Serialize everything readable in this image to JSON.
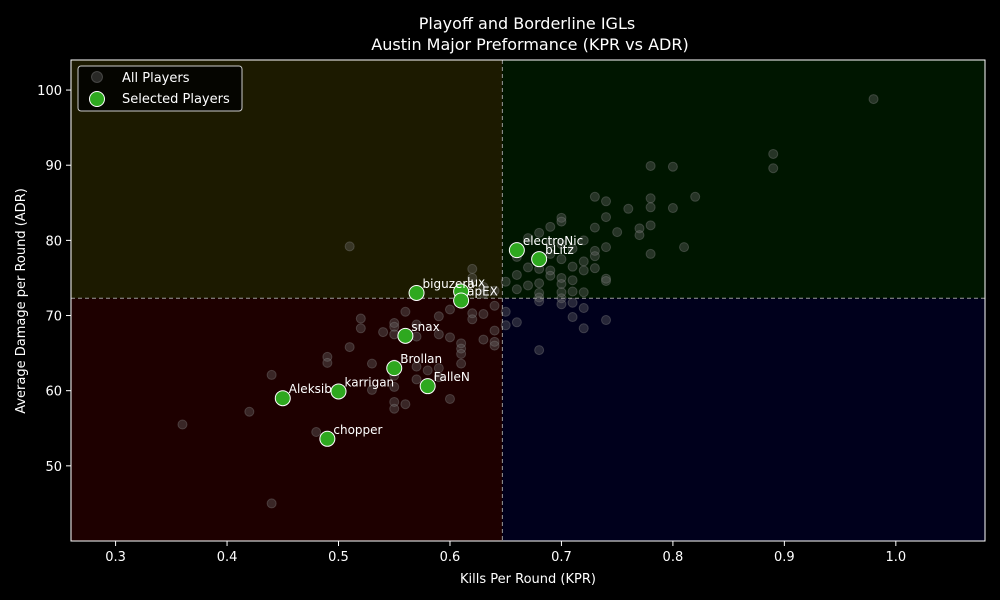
{
  "chart_data": {
    "type": "scatter",
    "title": "Playoff and Borderline IGLs",
    "subtitle": "Austin Major Preformance (KPR vs ADR)",
    "xlabel": "Kills Per Round (KPR)",
    "ylabel": "Average Damage per Round (ADR)",
    "xlim": [
      0.26,
      1.08
    ],
    "ylim": [
      40,
      104
    ],
    "xticks": [
      "0.3",
      "0.4",
      "0.5",
      "0.6",
      "0.7",
      "0.8",
      "0.9",
      "1.0"
    ],
    "yticks": [
      "50",
      "60",
      "70",
      "80",
      "90",
      "100"
    ],
    "grid": false,
    "legend_position": "top-left",
    "reference_lines": {
      "x": 0.647,
      "y": 72.3
    },
    "quadrant_colors": {
      "top_left": "#1c1a00",
      "top_right": "#001600",
      "bottom_left": "#1e0000",
      "bottom_right": "#00001c"
    },
    "colors": {
      "all_players": "#6e6e6e",
      "selected_players": "#2ea81f",
      "selected_edge": "#ffffff"
    },
    "legend": [
      "All Players",
      "Selected Players"
    ],
    "series": [
      {
        "name": "All Players",
        "points": [
          [
            0.98,
            98.8
          ],
          [
            0.89,
            91.5
          ],
          [
            0.89,
            89.6
          ],
          [
            0.82,
            85.8
          ],
          [
            0.8,
            89.8
          ],
          [
            0.78,
            89.9
          ],
          [
            0.78,
            85.6
          ],
          [
            0.78,
            84.4
          ],
          [
            0.76,
            84.2
          ],
          [
            0.74,
            85.2
          ],
          [
            0.73,
            85.8
          ],
          [
            0.74,
            83.1
          ],
          [
            0.8,
            84.3
          ],
          [
            0.78,
            82.0
          ],
          [
            0.77,
            81.6
          ],
          [
            0.77,
            80.7
          ],
          [
            0.75,
            81.1
          ],
          [
            0.73,
            81.7
          ],
          [
            0.7,
            83.0
          ],
          [
            0.69,
            81.8
          ],
          [
            0.7,
            82.5
          ],
          [
            0.68,
            81.0
          ],
          [
            0.67,
            80.3
          ],
          [
            0.69,
            79.6
          ],
          [
            0.72,
            80.0
          ],
          [
            0.7,
            79.5
          ],
          [
            0.74,
            79.1
          ],
          [
            0.73,
            78.6
          ],
          [
            0.73,
            77.9
          ],
          [
            0.71,
            78.9
          ],
          [
            0.81,
            79.1
          ],
          [
            0.78,
            78.2
          ],
          [
            0.69,
            78.2
          ],
          [
            0.7,
            77.5
          ],
          [
            0.72,
            77.2
          ],
          [
            0.66,
            77.8
          ],
          [
            0.67,
            76.4
          ],
          [
            0.68,
            76.2
          ],
          [
            0.69,
            76.0
          ],
          [
            0.71,
            76.5
          ],
          [
            0.72,
            76.0
          ],
          [
            0.73,
            76.3
          ],
          [
            0.66,
            75.4
          ],
          [
            0.69,
            75.3
          ],
          [
            0.7,
            75.0
          ],
          [
            0.71,
            74.7
          ],
          [
            0.74,
            74.9
          ],
          [
            0.74,
            74.6
          ],
          [
            0.65,
            74.5
          ],
          [
            0.67,
            74.0
          ],
          [
            0.68,
            74.3
          ],
          [
            0.7,
            74.2
          ],
          [
            0.62,
            76.2
          ],
          [
            0.62,
            75.0
          ],
          [
            0.63,
            73.8
          ],
          [
            0.64,
            73.3
          ],
          [
            0.66,
            73.5
          ],
          [
            0.68,
            73.0
          ],
          [
            0.7,
            73.1
          ],
          [
            0.71,
            73.2
          ],
          [
            0.72,
            73.1
          ],
          [
            0.63,
            72.9
          ],
          [
            0.68,
            72.4
          ],
          [
            0.7,
            72.3
          ],
          [
            0.68,
            71.9
          ],
          [
            0.7,
            71.5
          ],
          [
            0.71,
            71.7
          ],
          [
            0.72,
            71.0
          ],
          [
            0.64,
            71.3
          ],
          [
            0.65,
            70.5
          ],
          [
            0.71,
            69.8
          ],
          [
            0.74,
            69.4
          ],
          [
            0.66,
            69.1
          ],
          [
            0.72,
            68.3
          ],
          [
            0.65,
            68.7
          ],
          [
            0.64,
            68.0
          ],
          [
            0.63,
            70.2
          ],
          [
            0.62,
            70.3
          ],
          [
            0.62,
            69.5
          ],
          [
            0.6,
            70.8
          ],
          [
            0.59,
            69.9
          ],
          [
            0.56,
            70.5
          ],
          [
            0.52,
            69.6
          ],
          [
            0.51,
            79.2
          ],
          [
            0.55,
            69.0
          ],
          [
            0.55,
            68.5
          ],
          [
            0.57,
            68.8
          ],
          [
            0.52,
            68.3
          ],
          [
            0.54,
            67.8
          ],
          [
            0.55,
            67.5
          ],
          [
            0.57,
            67.2
          ],
          [
            0.59,
            67.5
          ],
          [
            0.6,
            67.1
          ],
          [
            0.61,
            66.3
          ],
          [
            0.63,
            66.8
          ],
          [
            0.64,
            66.5
          ],
          [
            0.64,
            66.0
          ],
          [
            0.61,
            65.6
          ],
          [
            0.61,
            64.9
          ],
          [
            0.68,
            65.4
          ],
          [
            0.51,
            65.8
          ],
          [
            0.49,
            64.5
          ],
          [
            0.49,
            63.7
          ],
          [
            0.53,
            63.6
          ],
          [
            0.55,
            63.5
          ],
          [
            0.57,
            63.2
          ],
          [
            0.59,
            63.0
          ],
          [
            0.61,
            63.6
          ],
          [
            0.58,
            62.7
          ],
          [
            0.44,
            62.1
          ],
          [
            0.55,
            62.0
          ],
          [
            0.57,
            61.5
          ],
          [
            0.59,
            61.8
          ],
          [
            0.55,
            60.5
          ],
          [
            0.53,
            60.1
          ],
          [
            0.56,
            58.2
          ],
          [
            0.6,
            58.9
          ],
          [
            0.55,
            58.5
          ],
          [
            0.55,
            57.6
          ],
          [
            0.42,
            57.2
          ],
          [
            0.36,
            55.5
          ],
          [
            0.48,
            54.5
          ],
          [
            0.44,
            45.0
          ]
        ]
      },
      {
        "name": "Selected Players",
        "players": [
          {
            "name": "electroNic",
            "x": 0.66,
            "y": 78.7
          },
          {
            "name": "bLitz",
            "x": 0.68,
            "y": 77.5
          },
          {
            "name": "biguzera",
            "x": 0.57,
            "y": 73.0
          },
          {
            "name": "lux",
            "x": 0.61,
            "y": 73.2
          },
          {
            "name": "apEX",
            "x": 0.61,
            "y": 72.0
          },
          {
            "name": "snax",
            "x": 0.56,
            "y": 67.3
          },
          {
            "name": "Brollan",
            "x": 0.55,
            "y": 63.0
          },
          {
            "name": "FalleN",
            "x": 0.58,
            "y": 60.6
          },
          {
            "name": "karrigan",
            "x": 0.5,
            "y": 59.9
          },
          {
            "name": "Aleksib",
            "x": 0.45,
            "y": 59.0
          },
          {
            "name": "chopper",
            "x": 0.49,
            "y": 53.6
          }
        ]
      }
    ]
  }
}
